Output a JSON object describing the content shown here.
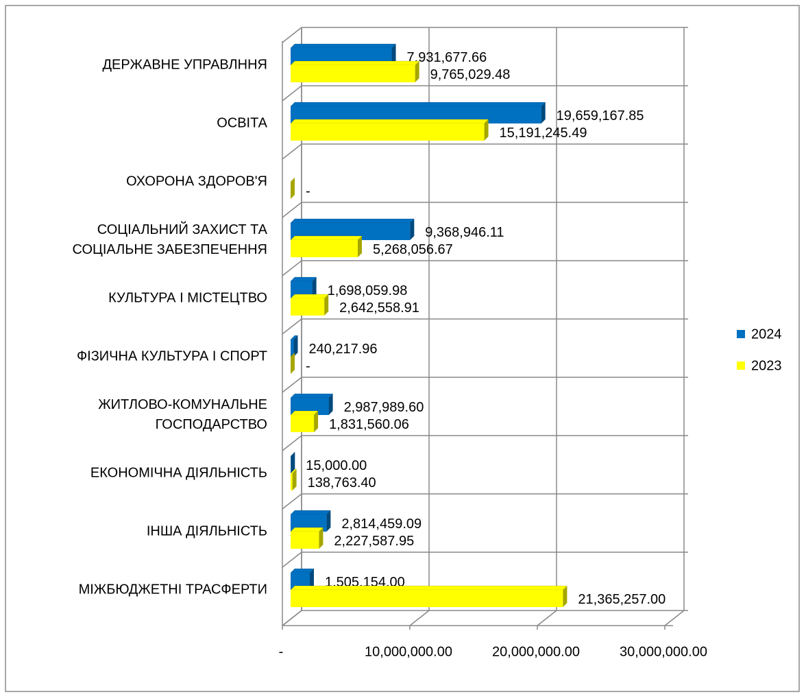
{
  "chart_data": {
    "type": "bar3d_horizontal",
    "categories": [
      "ДЕРЖАВНЕ УПРАВЛННЯ",
      "ОСВІТА",
      "ОХОРОНА  ЗДОРОВ'Я",
      "СОЦІАЛЬНИЙ ЗАХИСТ  ТА\nСОЦІАЛЬНЕ  ЗАБЕЗПЕЧЕННЯ",
      "КУЛЬТУРА І МІСТЕЦТВО",
      "ФІЗИЧНА КУЛЬТУРА  І  СПОРТ",
      "ЖИТЛОВО-КОМУНАЛЬНЕ\nГОСПОДАРСТВО",
      "ЕКОНОМІЧНА  ДІЯЛЬНІСТЬ",
      "ІНША  ДІЯЛЬНІСТЬ",
      "МІЖБЮДЖЕТНІ  ТРАСФЕРТИ"
    ],
    "series": [
      {
        "name": "2024",
        "color": "#0070c0",
        "values": [
          7931677.66,
          19659167.85,
          null,
          9368946.11,
          1698059.98,
          240217.96,
          2987989.6,
          15000,
          2814459.09,
          1505154
        ],
        "value_labels": [
          "7,931,677.66",
          "19,659,167.85",
          null,
          "9,368,946.11",
          "1,698,059.98",
          "240,217.96",
          "2,987,989.60",
          "15,000.00",
          "2,814,459.09",
          "1,505,154.00"
        ]
      },
      {
        "name": "2023",
        "color": "#ffff00",
        "values": [
          9765029.48,
          15191245.49,
          0,
          5268056.67,
          2642558.91,
          0,
          1831560.06,
          138763.4,
          2227587.95,
          21365257
        ],
        "value_labels": [
          "9,765,029.48",
          "15,191,245.49",
          "-",
          "5,268,056.67",
          "2,642,558.91",
          "-",
          "1,831,560.06",
          "138,763.40",
          "2,227,587.95",
          "21,365,257.00"
        ]
      }
    ],
    "xlim": [
      0,
      30000000
    ],
    "xticks": [
      {
        "value": 0,
        "label": "-"
      },
      {
        "value": 10000000,
        "label": "10,000,000.00"
      },
      {
        "value": 20000000,
        "label": "20,000,000.00"
      },
      {
        "value": 30000000,
        "label": "30,000,000.00"
      }
    ],
    "grid": true,
    "legend": "right"
  }
}
